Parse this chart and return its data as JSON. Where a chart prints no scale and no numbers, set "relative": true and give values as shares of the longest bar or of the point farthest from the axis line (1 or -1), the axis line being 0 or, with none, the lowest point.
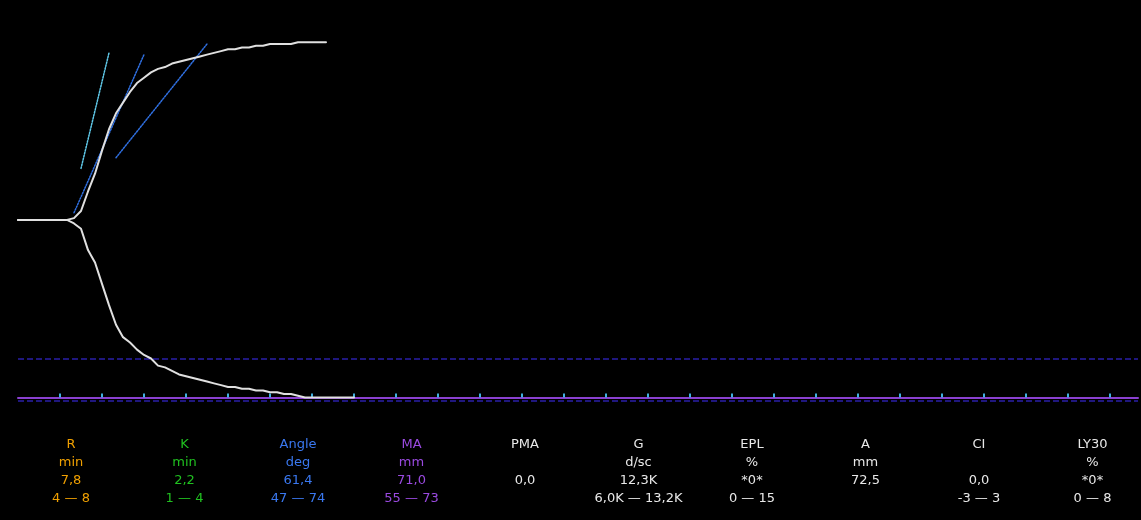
{
  "chart_data": {
    "type": "line",
    "relative": true,
    "marker": "none",
    "line_style": "solid",
    "categories": [
      null,
      null,
      null,
      null,
      null,
      null,
      null,
      null,
      null,
      null,
      null,
      null,
      null,
      null,
      null,
      null,
      null,
      null,
      null,
      null,
      null,
      null,
      null,
      null,
      null,
      null,
      null,
      null,
      null,
      null,
      null,
      null,
      null,
      null,
      null,
      null,
      null,
      null,
      null,
      null,
      null,
      null,
      null,
      null,
      null,
      null,
      null,
      null,
      null,
      null,
      null,
      null,
      null,
      null,
      null,
      null,
      null,
      null,
      null,
      null,
      null,
      null,
      null,
      null,
      null,
      null,
      null,
      null,
      null,
      null,
      null,
      null,
      null,
      null,
      null,
      null,
      null,
      null,
      null,
      null,
      null,
      null,
      null,
      null,
      null,
      null,
      null,
      null,
      null,
      null,
      null,
      null,
      null,
      null,
      null,
      null,
      null,
      null,
      null,
      null,
      null,
      null,
      null,
      null,
      null,
      null,
      null,
      null,
      null,
      null,
      null,
      null,
      null,
      null,
      null,
      null,
      null,
      null,
      null,
      null,
      null,
      null,
      null,
      null,
      null,
      null,
      null,
      null,
      null,
      null,
      null,
      null,
      null,
      null,
      null,
      null,
      null,
      null,
      null,
      null,
      null,
      null,
      null,
      null,
      null,
      null,
      null,
      null,
      null,
      null,
      null,
      null,
      null,
      null,
      null,
      null,
      null,
      null,
      null,
      null,
      null
    ],
    "series": [
      {
        "color": "#e0e0e0",
        "values": [
          0.5,
          0.5,
          0.5,
          0.5,
          0.5,
          0.5,
          0.5,
          0.5,
          0.505,
          0.525,
          0.58,
          0.63,
          0.695,
          0.755,
          0.8,
          0.83,
          0.86,
          0.885,
          0.9,
          0.915,
          0.925,
          0.93,
          0.94,
          0.945,
          0.95,
          0.955,
          0.96,
          0.965,
          0.97,
          0.975,
          0.98,
          0.98,
          0.985,
          0.985,
          0.99,
          0.99,
          0.995,
          0.995,
          0.995,
          0.995,
          1,
          1,
          1,
          1,
          1,
          null,
          null,
          null,
          null,
          null,
          null,
          null,
          null,
          null,
          null,
          null,
          null,
          null,
          null,
          null,
          null,
          null,
          null,
          null,
          null,
          null,
          null,
          null,
          null,
          null,
          null,
          null,
          null,
          null,
          null,
          null,
          null,
          null,
          null,
          null,
          null,
          null,
          null,
          null,
          null,
          null,
          null,
          null,
          null,
          null,
          null,
          null,
          null,
          null,
          null,
          null,
          null,
          null,
          null,
          null,
          null,
          null,
          null,
          null,
          null,
          null,
          null,
          null,
          null,
          null,
          null,
          null,
          null,
          null,
          null,
          null,
          null,
          null,
          null,
          null,
          null,
          null,
          null,
          null,
          null,
          null,
          null,
          null,
          null,
          null,
          null,
          null,
          null,
          null,
          null,
          null,
          null,
          null,
          null,
          null,
          null,
          null,
          null,
          null,
          null,
          null,
          null,
          null,
          null,
          null,
          null,
          null,
          null,
          null,
          null,
          null,
          null,
          null,
          null,
          null,
          null
        ]
      },
      {
        "color": "#e0e0e0",
        "values": [
          0.5,
          0.5,
          0.5,
          0.5,
          0.5,
          0.5,
          0.5,
          0.5,
          0.49,
          0.475,
          0.415,
          0.38,
          0.32,
          0.26,
          0.205,
          0.17,
          0.155,
          0.135,
          0.12,
          0.11,
          0.09,
          0.085,
          0.075,
          0.065,
          0.06,
          0.055,
          0.05,
          0.045,
          0.04,
          0.035,
          0.03,
          0.03,
          0.025,
          0.025,
          0.02,
          0.02,
          0.015,
          0.015,
          0.01,
          0.01,
          0.005,
          0,
          0,
          0,
          0,
          0,
          0,
          0,
          0,
          null,
          null,
          null,
          null,
          null,
          null,
          null,
          null,
          null,
          null,
          null,
          null,
          null,
          null,
          null,
          null,
          null,
          null,
          null,
          null,
          null,
          null,
          null,
          null,
          null,
          null,
          null,
          null,
          null,
          null,
          null,
          null,
          null,
          null,
          null,
          null,
          null,
          null,
          null,
          null,
          null,
          null,
          null,
          null,
          null,
          null,
          null,
          null,
          null,
          null,
          null,
          null,
          null,
          null,
          null,
          null,
          null,
          null,
          null,
          null,
          null,
          null,
          null,
          null,
          null,
          null,
          null,
          null,
          null,
          null,
          null,
          null,
          null,
          null,
          null,
          null,
          null,
          null,
          null,
          null,
          null,
          null,
          null,
          null,
          null,
          null,
          null,
          null,
          null,
          null,
          null,
          null,
          null,
          null,
          null,
          null,
          null,
          null,
          null,
          null,
          null,
          null,
          null,
          null,
          null,
          null,
          null,
          null,
          null,
          null,
          null,
          null
        ]
      },
      {
        "color": "#2f6fe0",
        "line_style": "dotted",
        "values": [
          null,
          null,
          null,
          null,
          null,
          null,
          null,
          null,
          0.52,
          null,
          null,
          null,
          null,
          null,
          null,
          null,
          null,
          null,
          0.965,
          null,
          null,
          null,
          null,
          null,
          null,
          null,
          null,
          null,
          null,
          null,
          null,
          null,
          null,
          null,
          null,
          null,
          null,
          null,
          null,
          null,
          null,
          null,
          null,
          null,
          null,
          null,
          null,
          null,
          null,
          null,
          null,
          null,
          null,
          null,
          null,
          null,
          null,
          null,
          null,
          null,
          null,
          null,
          null,
          null,
          null,
          null,
          null,
          null,
          null,
          null,
          null,
          null,
          null,
          null,
          null,
          null,
          null,
          null,
          null,
          null,
          null,
          null,
          null,
          null,
          null,
          null,
          null,
          null,
          null,
          null,
          null,
          null,
          null,
          null,
          null,
          null,
          null,
          null,
          null,
          null,
          null,
          null,
          null,
          null,
          null,
          null,
          null,
          null,
          null,
          null,
          null,
          null,
          null,
          null,
          null,
          null,
          null,
          null,
          null,
          null,
          null,
          null,
          null,
          null,
          null,
          null,
          null,
          null,
          null,
          null,
          null,
          null,
          null,
          null,
          null,
          null,
          null,
          null,
          null,
          null,
          null,
          null,
          null,
          null,
          null,
          null,
          null,
          null,
          null,
          null,
          null,
          null,
          null,
          null,
          null,
          null,
          null,
          null,
          null,
          null,
          null
        ]
      },
      {
        "color": "#2f6fe0",
        "line_style": "dotted",
        "values": [
          null,
          null,
          null,
          null,
          null,
          null,
          null,
          null,
          null,
          null,
          null,
          null,
          null,
          null,
          0.675,
          null,
          null,
          null,
          null,
          null,
          null,
          null,
          null,
          null,
          null,
          null,
          null,
          0.995,
          null,
          null,
          null,
          null,
          null,
          null,
          null,
          null,
          null,
          null,
          null,
          null,
          null,
          null,
          null,
          null,
          null,
          null,
          null,
          null,
          null,
          null,
          null,
          null,
          null,
          null,
          null,
          null,
          null,
          null,
          null,
          null,
          null,
          null,
          null,
          null,
          null,
          null,
          null,
          null,
          null,
          null,
          null,
          null,
          null,
          null,
          null,
          null,
          null,
          null,
          null,
          null,
          null,
          null,
          null,
          null,
          null,
          null,
          null,
          null,
          null,
          null,
          null,
          null,
          null,
          null,
          null,
          null,
          null,
          null,
          null,
          null,
          null,
          null,
          null,
          null,
          null,
          null,
          null,
          null,
          null,
          null,
          null,
          null,
          null,
          null,
          null,
          null,
          null,
          null,
          null,
          null,
          null,
          null,
          null,
          null,
          null,
          null,
          null,
          null,
          null,
          null,
          null,
          null,
          null,
          null,
          null,
          null,
          null,
          null,
          null,
          null,
          null,
          null,
          null,
          null,
          null,
          null,
          null,
          null,
          null,
          null,
          null,
          null,
          null,
          null,
          null,
          null,
          null,
          null,
          null,
          null,
          null
        ]
      },
      {
        "color": "#5fc8e8",
        "line_style": "dotted",
        "values": [
          null,
          null,
          null,
          null,
          null,
          null,
          null,
          null,
          null,
          0.645,
          null,
          null,
          null,
          0.97,
          null,
          null,
          null,
          null,
          null,
          null,
          null,
          null,
          null,
          null,
          null,
          null,
          null,
          null,
          null,
          null,
          null,
          null,
          null,
          null,
          null,
          null,
          null,
          null,
          null,
          null,
          null,
          null,
          null,
          null,
          null,
          null,
          null,
          null,
          null,
          null,
          null,
          null,
          null,
          null,
          null,
          null,
          null,
          null,
          null,
          null,
          null,
          null,
          null,
          null,
          null,
          null,
          null,
          null,
          null,
          null,
          null,
          null,
          null,
          null,
          null,
          null,
          null,
          null,
          null,
          null,
          null,
          null,
          null,
          null,
          null,
          null,
          null,
          null,
          null,
          null,
          null,
          null,
          null,
          null,
          null,
          null,
          null,
          null,
          null,
          null,
          null,
          null,
          null,
          null,
          null,
          null,
          null,
          null,
          null,
          null,
          null,
          null,
          null,
          null,
          null,
          null,
          null,
          null,
          null,
          null,
          null,
          null,
          null,
          null,
          null,
          null,
          null,
          null,
          null,
          null,
          null,
          null,
          null,
          null,
          null,
          null,
          null,
          null,
          null,
          null,
          null,
          null,
          null,
          null,
          null,
          null,
          null,
          null,
          null,
          null,
          null,
          null,
          null,
          null,
          null,
          null,
          null,
          null,
          null,
          null,
          null
        ]
      }
    ],
    "ref_lines": [
      {
        "axis": "y",
        "value": 0.11,
        "color": "#2a1fa8",
        "line_style": "dashed"
      },
      {
        "axis": "y",
        "value": -0.01,
        "color": "#2a1fa8",
        "line_style": "dashed"
      }
    ],
    "annotations": [
      "R\nmin\n7,8\n4 — 8",
      "K\nmin\n2,2\n1 — 4",
      "Angle\ndeg\n61,4\n47 — 74",
      "MA\nmm\n71,0\n55 — 73",
      "PMA\n\n0,0\n",
      "G\nd/sc\n12,3K\n6,0K — 13,2K",
      "EPL\n%\n*0*\n0 — 15",
      "A\nmm\n72,5\n",
      "CI\n\n0,0\n-3 — 3",
      "LY30\n%\n*0*\n0 — 8"
    ]
  }
}
